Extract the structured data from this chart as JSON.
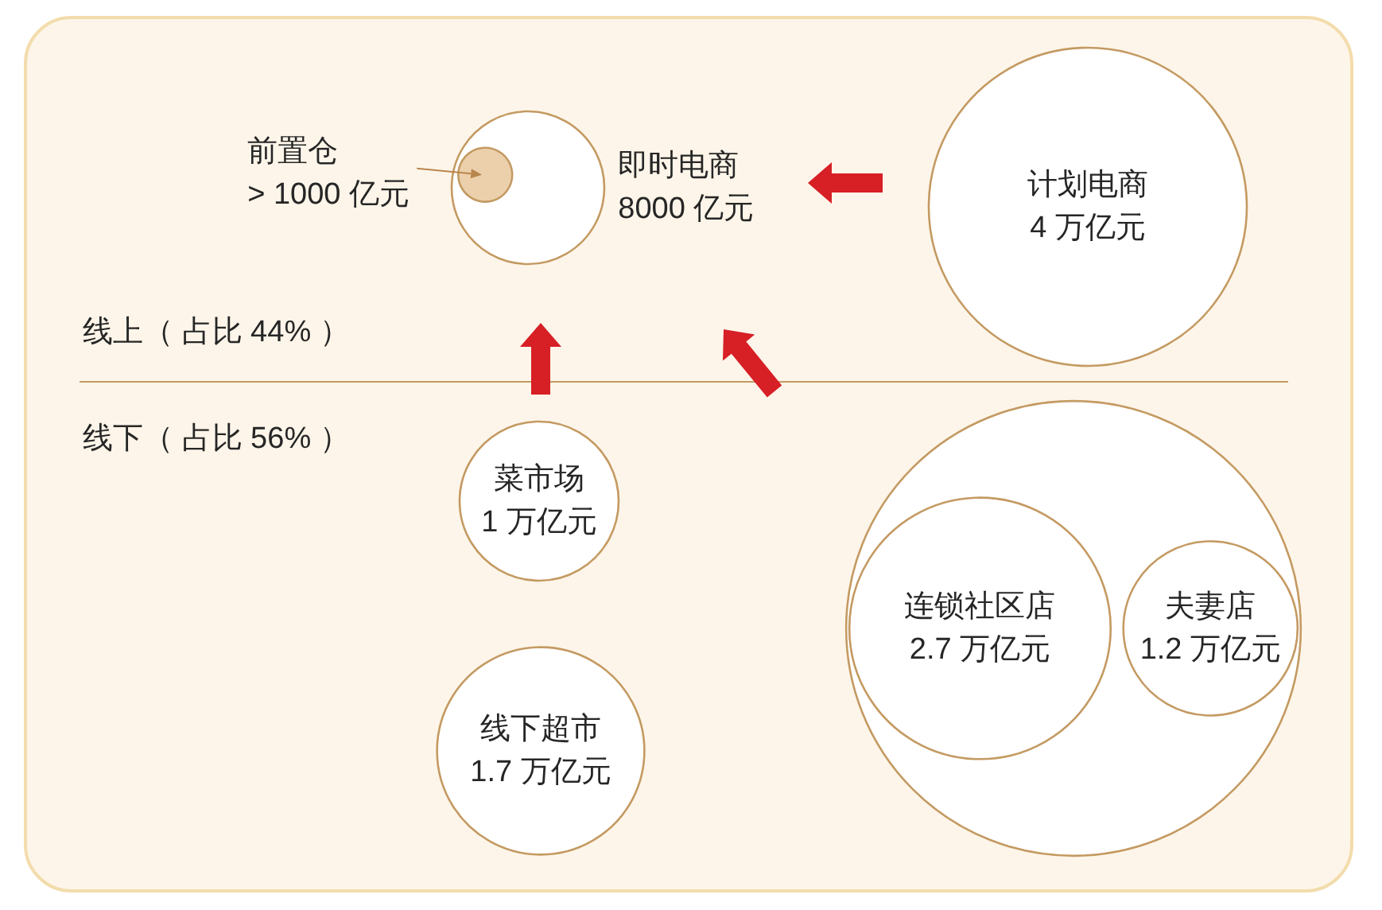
{
  "chart_data": {
    "type": "other",
    "categories": [
      "前置仓",
      "即时电商",
      "计划电商",
      "菜市场",
      "连锁社区店",
      "夫妻店",
      "线下超市"
    ],
    "colors": [
      "#ecd0ac",
      "#ffffff",
      "#ffffff",
      "#ffffff",
      "#ffffff",
      "#ffffff",
      "#ffffff"
    ],
    "series": [
      {
        "color": "#c49a62",
        "values": [
          1000,
          8000,
          null,
          null,
          null,
          null,
          null
        ],
        "value_labels": [
          "> 1000 亿元",
          "8000 亿元",
          null,
          null,
          null,
          null,
          null
        ]
      },
      {
        "color": "#c49a62",
        "values": [
          null,
          null,
          4,
          1,
          2.7,
          1.2,
          1.7
        ],
        "value_labels": [
          null,
          null,
          "4 万亿元",
          "1 万亿元",
          "2.7 万亿元",
          "1.2 万亿元",
          "1.7 万亿元"
        ]
      }
    ],
    "annotations": [
      "线上（ 占比 44% ）",
      "线下（ 占比 56% ）"
    ]
  }
}
